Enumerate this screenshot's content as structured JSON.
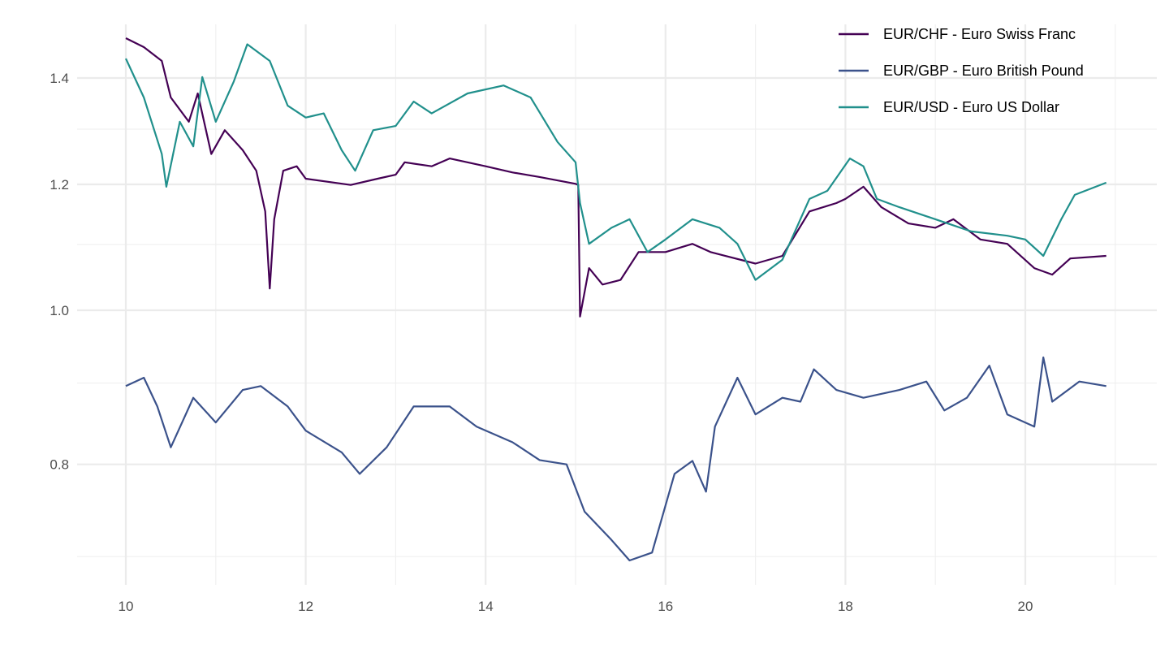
{
  "chart_data": {
    "type": "line",
    "title": "",
    "xlabel": "",
    "ylabel": "",
    "xlim": [
      9.45,
      21.45
    ],
    "ylim": [
      0.665,
      1.49
    ],
    "yscale": "log",
    "grid": true,
    "legend_position": "top-right",
    "x_ticks": [
      10,
      12,
      14,
      16,
      18,
      20
    ],
    "x_tick_labels": [
      "10",
      "12",
      "14",
      "16",
      "18",
      "20"
    ],
    "x_minor_ticks": [
      11,
      13,
      15,
      17,
      19,
      21
    ],
    "y_ticks": [
      0.8,
      1.0,
      1.2,
      1.4
    ],
    "y_tick_labels": [
      "0.8",
      "1.0",
      "1.2",
      "1.4"
    ],
    "y_minor_ticks": [
      0.7,
      0.9,
      1.1,
      1.3
    ],
    "series": [
      {
        "name": "EUR/CHF - Euro Swiss Franc",
        "color": "#440154",
        "x": [
          10.0,
          10.2,
          10.4,
          10.5,
          10.7,
          10.8,
          10.95,
          11.1,
          11.3,
          11.45,
          11.55,
          11.6,
          11.65,
          11.75,
          11.9,
          12.0,
          12.5,
          12.8,
          13.0,
          13.1,
          13.4,
          13.6,
          14.0,
          14.3,
          14.6,
          15.0,
          15.03,
          15.05,
          15.15,
          15.3,
          15.5,
          15.7,
          16.0,
          16.3,
          16.5,
          17.0,
          17.3,
          17.6,
          17.9,
          18.0,
          18.2,
          18.4,
          18.7,
          19.0,
          19.2,
          19.5,
          19.8,
          20.1,
          20.3,
          20.5,
          20.9
        ],
        "y": [
          1.483,
          1.464,
          1.435,
          1.361,
          1.314,
          1.369,
          1.254,
          1.298,
          1.261,
          1.224,
          1.154,
          1.032,
          1.141,
          1.224,
          1.232,
          1.21,
          1.199,
          1.21,
          1.217,
          1.239,
          1.232,
          1.246,
          1.232,
          1.221,
          1.213,
          1.201,
          1.199,
          0.991,
          1.063,
          1.038,
          1.045,
          1.088,
          1.088,
          1.101,
          1.088,
          1.07,
          1.082,
          1.154,
          1.168,
          1.175,
          1.196,
          1.161,
          1.134,
          1.127,
          1.141,
          1.108,
          1.101,
          1.063,
          1.053,
          1.078,
          1.082
        ]
      },
      {
        "name": "EUR/GBP - Euro British Pound",
        "color": "#3B528B",
        "x": [
          10.0,
          10.2,
          10.35,
          10.5,
          10.75,
          11.0,
          11.3,
          11.5,
          11.8,
          12.0,
          12.4,
          12.6,
          12.9,
          13.2,
          13.6,
          13.9,
          14.3,
          14.6,
          14.9,
          15.1,
          15.4,
          15.6,
          15.85,
          16.1,
          16.3,
          16.45,
          16.55,
          16.8,
          17.0,
          17.3,
          17.5,
          17.65,
          17.9,
          18.2,
          18.6,
          18.9,
          19.1,
          19.35,
          19.6,
          19.8,
          20.1,
          20.2,
          20.3,
          20.6,
          20.9
        ],
        "y": [
          0.896,
          0.907,
          0.87,
          0.82,
          0.881,
          0.85,
          0.891,
          0.896,
          0.87,
          0.84,
          0.814,
          0.789,
          0.82,
          0.87,
          0.87,
          0.845,
          0.826,
          0.805,
          0.8,
          0.747,
          0.717,
          0.696,
          0.704,
          0.789,
          0.804,
          0.769,
          0.845,
          0.907,
          0.86,
          0.881,
          0.876,
          0.918,
          0.891,
          0.881,
          0.891,
          0.902,
          0.865,
          0.881,
          0.923,
          0.86,
          0.845,
          0.934,
          0.876,
          0.902,
          0.896
        ]
      },
      {
        "name": "EUR/USD - Euro US Dollar",
        "color": "#21908C",
        "x": [
          10.0,
          10.2,
          10.4,
          10.45,
          10.6,
          10.75,
          10.85,
          11.0,
          11.2,
          11.35,
          11.6,
          11.8,
          12.0,
          12.2,
          12.4,
          12.55,
          12.75,
          13.0,
          13.2,
          13.4,
          13.8,
          14.2,
          14.5,
          14.8,
          15.0,
          15.05,
          15.15,
          15.4,
          15.6,
          15.8,
          16.0,
          16.3,
          16.6,
          16.8,
          17.0,
          17.3,
          17.6,
          17.8,
          18.05,
          18.2,
          18.35,
          18.6,
          19.0,
          19.4,
          19.8,
          20.0,
          20.2,
          20.4,
          20.55,
          20.9
        ],
        "y": [
          1.44,
          1.361,
          1.254,
          1.196,
          1.314,
          1.268,
          1.402,
          1.314,
          1.393,
          1.47,
          1.435,
          1.345,
          1.322,
          1.33,
          1.261,
          1.224,
          1.298,
          1.306,
          1.353,
          1.33,
          1.369,
          1.385,
          1.361,
          1.276,
          1.239,
          1.168,
          1.101,
          1.127,
          1.141,
          1.088,
          1.108,
          1.141,
          1.127,
          1.101,
          1.045,
          1.076,
          1.175,
          1.189,
          1.246,
          1.232,
          1.175,
          1.161,
          1.141,
          1.121,
          1.114,
          1.108,
          1.082,
          1.141,
          1.182,
          1.203
        ]
      }
    ]
  }
}
